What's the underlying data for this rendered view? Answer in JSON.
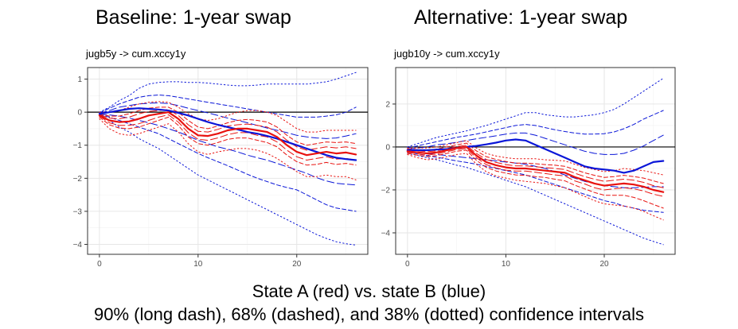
{
  "titles": {
    "left": "Baseline: 1-year swap",
    "right": "Alternative: 1-year swap"
  },
  "caption": {
    "line1": "State A (red) vs. state B (blue)",
    "line2": "90% (long dash), 68% (dashed), and 38% (dotted) confidence intervals"
  },
  "colors": {
    "state_a": "#e8120f",
    "state_b": "#0a16d8",
    "zero_line": "#000000",
    "grid": "#e6e6e6"
  },
  "chart_data": [
    {
      "type": "line",
      "title": "Baseline: 1-year swap",
      "subtitle": "jugb5y -> cum.xccy1y",
      "x": [
        0,
        1,
        2,
        3,
        4,
        5,
        6,
        7,
        8,
        9,
        10,
        11,
        12,
        13,
        14,
        15,
        16,
        17,
        18,
        19,
        20,
        21,
        22,
        23,
        24,
        25,
        26
      ],
      "xticks": [
        0,
        10,
        20
      ],
      "yticks": [
        1,
        0,
        -1,
        -2,
        -3,
        -4
      ],
      "xlim": [
        -1.2,
        27.2
      ],
      "ylim": [
        -4.3,
        1.35
      ],
      "grid": true,
      "series": [
        {
          "state": "B",
          "band": "estimate",
          "style": "solid",
          "values": [
            -0.05,
            0.0,
            0.05,
            0.1,
            0.12,
            0.1,
            0.08,
            0.05,
            -0.02,
            -0.1,
            -0.2,
            -0.3,
            -0.38,
            -0.45,
            -0.52,
            -0.6,
            -0.65,
            -0.72,
            -0.8,
            -0.9,
            -1.0,
            -1.1,
            -1.2,
            -1.3,
            -1.38,
            -1.42,
            -1.45
          ]
        },
        {
          "state": "B",
          "band": "38% upper",
          "style": "dotted",
          "values": [
            0.0,
            0.15,
            0.35,
            0.5,
            0.72,
            0.85,
            0.9,
            0.92,
            0.92,
            0.9,
            0.9,
            0.88,
            0.85,
            0.82,
            0.8,
            0.8,
            0.82,
            0.85,
            0.85,
            0.85,
            0.85,
            0.85,
            0.88,
            0.92,
            1.0,
            1.1,
            1.2
          ]
        },
        {
          "state": "B",
          "band": "38% lower",
          "style": "dotted",
          "values": [
            -0.1,
            -0.25,
            -0.45,
            -0.6,
            -0.8,
            -0.95,
            -1.1,
            -1.3,
            -1.5,
            -1.7,
            -1.9,
            -2.05,
            -2.2,
            -2.35,
            -2.5,
            -2.65,
            -2.8,
            -2.95,
            -3.1,
            -3.25,
            -3.4,
            -3.55,
            -3.7,
            -3.82,
            -3.92,
            -3.98,
            -4.02
          ]
        },
        {
          "state": "B",
          "band": "68% upper",
          "style": "dashed",
          "values": [
            -0.02,
            0.12,
            0.25,
            0.35,
            0.45,
            0.5,
            0.52,
            0.5,
            0.45,
            0.4,
            0.35,
            0.3,
            0.25,
            0.2,
            0.15,
            0.1,
            0.05,
            0.0,
            -0.05,
            -0.1,
            -0.15,
            -0.15,
            -0.15,
            -0.12,
            -0.08,
            0.0,
            0.15
          ]
        },
        {
          "state": "B",
          "band": "68% lower",
          "style": "dashed",
          "values": [
            -0.08,
            -0.15,
            -0.25,
            -0.35,
            -0.45,
            -0.55,
            -0.65,
            -0.8,
            -0.95,
            -1.1,
            -1.25,
            -1.38,
            -1.5,
            -1.62,
            -1.75,
            -1.88,
            -2.0,
            -2.1,
            -2.2,
            -2.28,
            -2.35,
            -2.5,
            -2.65,
            -2.8,
            -2.9,
            -2.95,
            -3.0
          ]
        },
        {
          "state": "B",
          "band": "90% upper",
          "style": "longdash",
          "values": [
            -0.03,
            0.05,
            0.15,
            0.2,
            0.25,
            0.27,
            0.28,
            0.26,
            0.2,
            0.12,
            0.05,
            -0.02,
            -0.1,
            -0.18,
            -0.25,
            -0.32,
            -0.4,
            -0.48,
            -0.55,
            -0.62,
            -0.7,
            -0.75,
            -0.78,
            -0.8,
            -0.78,
            -0.72,
            -0.65
          ]
        },
        {
          "state": "B",
          "band": "90% lower",
          "style": "longdash",
          "values": [
            -0.07,
            -0.08,
            -0.12,
            -0.18,
            -0.25,
            -0.32,
            -0.4,
            -0.5,
            -0.6,
            -0.72,
            -0.85,
            -0.95,
            -1.05,
            -1.12,
            -1.2,
            -1.3,
            -1.38,
            -1.45,
            -1.55,
            -1.65,
            -1.75,
            -1.85,
            -1.98,
            -2.08,
            -2.15,
            -2.18,
            -2.2
          ]
        },
        {
          "state": "A",
          "band": "estimate",
          "style": "solid",
          "values": [
            -0.1,
            -0.25,
            -0.3,
            -0.28,
            -0.2,
            -0.1,
            -0.05,
            0.0,
            -0.2,
            -0.5,
            -0.7,
            -0.72,
            -0.65,
            -0.55,
            -0.5,
            -0.5,
            -0.55,
            -0.6,
            -0.75,
            -1.0,
            -1.2,
            -1.3,
            -1.25,
            -1.2,
            -1.25,
            -1.22,
            -1.28
          ]
        },
        {
          "state": "A",
          "band": "38% upper",
          "style": "dotted",
          "values": [
            0.0,
            0.0,
            0.05,
            0.15,
            0.25,
            0.3,
            0.32,
            0.3,
            0.15,
            -0.05,
            -0.2,
            -0.25,
            -0.2,
            -0.1,
            0.0,
            0.05,
            0.05,
            0.0,
            -0.1,
            -0.3,
            -0.5,
            -0.6,
            -0.6,
            -0.55,
            -0.55,
            -0.55,
            -0.55
          ]
        },
        {
          "state": "A",
          "band": "38% lower",
          "style": "dotted",
          "values": [
            -0.2,
            -0.5,
            -0.65,
            -0.7,
            -0.65,
            -0.55,
            -0.45,
            -0.35,
            -0.6,
            -0.95,
            -1.2,
            -1.28,
            -1.2,
            -1.15,
            -1.1,
            -1.1,
            -1.15,
            -1.25,
            -1.4,
            -1.6,
            -1.8,
            -1.95,
            -1.95,
            -1.9,
            -1.95,
            -1.95,
            -2.05
          ]
        },
        {
          "state": "A",
          "band": "68% upper",
          "style": "dashed",
          "values": [
            -0.05,
            -0.12,
            -0.12,
            -0.05,
            0.05,
            0.12,
            0.15,
            0.15,
            0.0,
            -0.25,
            -0.45,
            -0.5,
            -0.42,
            -0.32,
            -0.25,
            -0.22,
            -0.25,
            -0.3,
            -0.45,
            -0.7,
            -0.9,
            -1.0,
            -0.95,
            -0.9,
            -0.92,
            -0.9,
            -0.95
          ]
        },
        {
          "state": "A",
          "band": "68% lower",
          "style": "dashed",
          "values": [
            -0.15,
            -0.38,
            -0.48,
            -0.5,
            -0.45,
            -0.35,
            -0.25,
            -0.15,
            -0.4,
            -0.75,
            -0.95,
            -1.0,
            -0.92,
            -0.82,
            -0.78,
            -0.78,
            -0.85,
            -0.92,
            -1.05,
            -1.3,
            -1.5,
            -1.6,
            -1.58,
            -1.52,
            -1.58,
            -1.55,
            -1.6
          ]
        },
        {
          "state": "A",
          "band": "90% upper",
          "style": "longdash",
          "values": [
            -0.08,
            -0.18,
            -0.2,
            -0.15,
            -0.05,
            0.02,
            0.05,
            0.08,
            -0.1,
            -0.38,
            -0.58,
            -0.6,
            -0.52,
            -0.42,
            -0.38,
            -0.36,
            -0.4,
            -0.45,
            -0.6,
            -0.85,
            -1.05,
            -1.15,
            -1.1,
            -1.05,
            -1.08,
            -1.05,
            -1.1
          ]
        },
        {
          "state": "A",
          "band": "90% lower",
          "style": "longdash",
          "values": [
            -0.12,
            -0.32,
            -0.4,
            -0.4,
            -0.35,
            -0.25,
            -0.15,
            -0.08,
            -0.3,
            -0.62,
            -0.82,
            -0.85,
            -0.78,
            -0.68,
            -0.62,
            -0.62,
            -0.7,
            -0.75,
            -0.9,
            -1.15,
            -1.35,
            -1.45,
            -1.4,
            -1.35,
            -1.42,
            -1.4,
            -1.45
          ]
        }
      ]
    },
    {
      "type": "line",
      "title": "Alternative: 1-year swap",
      "subtitle": "jugb10y -> cum.xccy1y",
      "x": [
        0,
        1,
        2,
        3,
        4,
        5,
        6,
        7,
        8,
        9,
        10,
        11,
        12,
        13,
        14,
        15,
        16,
        17,
        18,
        19,
        20,
        21,
        22,
        23,
        24,
        25,
        26
      ],
      "xticks": [
        0,
        10,
        20
      ],
      "yticks": [
        2,
        0,
        -2,
        -4
      ],
      "xlim": [
        -1.2,
        27.2
      ],
      "ylim": [
        -5.0,
        3.7
      ],
      "grid": true,
      "series": [
        {
          "state": "B",
          "band": "estimate",
          "style": "solid",
          "values": [
            -0.15,
            -0.15,
            -0.15,
            -0.12,
            -0.1,
            -0.05,
            0.0,
            0.05,
            0.12,
            0.2,
            0.3,
            0.35,
            0.3,
            0.1,
            -0.1,
            -0.3,
            -0.5,
            -0.7,
            -0.9,
            -1.0,
            -1.05,
            -1.1,
            -1.2,
            -1.1,
            -0.9,
            -0.7,
            -0.65
          ]
        },
        {
          "state": "B",
          "band": "38% upper",
          "style": "dotted",
          "values": [
            0.0,
            0.15,
            0.3,
            0.45,
            0.55,
            0.65,
            0.75,
            0.88,
            1.0,
            1.15,
            1.3,
            1.45,
            1.6,
            1.6,
            1.5,
            1.45,
            1.4,
            1.4,
            1.45,
            1.5,
            1.6,
            1.75,
            2.0,
            2.3,
            2.6,
            2.9,
            3.2
          ]
        },
        {
          "state": "B",
          "band": "38% lower",
          "style": "dotted",
          "values": [
            -0.3,
            -0.4,
            -0.5,
            -0.6,
            -0.72,
            -0.85,
            -0.95,
            -1.1,
            -1.25,
            -1.4,
            -1.55,
            -1.7,
            -1.85,
            -2.05,
            -2.25,
            -2.45,
            -2.65,
            -2.85,
            -3.05,
            -3.25,
            -3.45,
            -3.65,
            -3.85,
            -4.05,
            -4.25,
            -4.4,
            -4.55
          ]
        },
        {
          "state": "B",
          "band": "68% upper",
          "style": "dashed",
          "values": [
            -0.05,
            0.05,
            0.15,
            0.25,
            0.35,
            0.45,
            0.52,
            0.6,
            0.7,
            0.8,
            0.9,
            1.0,
            1.05,
            1.0,
            0.9,
            0.8,
            0.72,
            0.65,
            0.6,
            0.6,
            0.62,
            0.7,
            0.85,
            1.05,
            1.3,
            1.5,
            1.7
          ]
        },
        {
          "state": "B",
          "band": "68% lower",
          "style": "dashed",
          "values": [
            -0.25,
            -0.32,
            -0.4,
            -0.48,
            -0.56,
            -0.65,
            -0.72,
            -0.8,
            -0.9,
            -1.0,
            -1.1,
            -1.2,
            -1.3,
            -1.45,
            -1.6,
            -1.75,
            -1.9,
            -2.05,
            -2.2,
            -2.35,
            -2.5,
            -2.6,
            -2.75,
            -2.85,
            -2.95,
            -3.0,
            -3.05
          ]
        },
        {
          "state": "B",
          "band": "90% upper",
          "style": "longdash",
          "values": [
            -0.1,
            -0.05,
            0.0,
            0.1,
            0.15,
            0.22,
            0.3,
            0.38,
            0.45,
            0.52,
            0.6,
            0.65,
            0.65,
            0.55,
            0.4,
            0.25,
            0.1,
            -0.05,
            -0.2,
            -0.3,
            -0.35,
            -0.35,
            -0.3,
            -0.15,
            0.05,
            0.3,
            0.55
          ]
        },
        {
          "state": "B",
          "band": "90% lower",
          "style": "longdash",
          "values": [
            -0.2,
            -0.25,
            -0.3,
            -0.35,
            -0.4,
            -0.45,
            -0.5,
            -0.55,
            -0.6,
            -0.65,
            -0.7,
            -0.75,
            -0.8,
            -0.9,
            -1.0,
            -1.15,
            -1.3,
            -1.45,
            -1.6,
            -1.7,
            -1.8,
            -1.85,
            -1.9,
            -1.9,
            -1.88,
            -1.85,
            -1.85
          ]
        },
        {
          "state": "A",
          "band": "estimate",
          "style": "solid",
          "values": [
            -0.2,
            -0.25,
            -0.3,
            -0.25,
            -0.15,
            -0.05,
            0.0,
            -0.4,
            -0.7,
            -0.85,
            -0.95,
            -1.0,
            -1.0,
            -1.05,
            -1.1,
            -1.15,
            -1.2,
            -1.4,
            -1.55,
            -1.7,
            -1.8,
            -1.75,
            -1.7,
            -1.75,
            -1.85,
            -2.0,
            -2.1
          ]
        },
        {
          "state": "A",
          "band": "38% upper",
          "style": "dotted",
          "values": [
            -0.05,
            -0.05,
            -0.05,
            0.0,
            0.1,
            0.2,
            0.3,
            -0.05,
            -0.3,
            -0.42,
            -0.5,
            -0.55,
            -0.55,
            -0.55,
            -0.6,
            -0.62,
            -0.65,
            -0.8,
            -0.95,
            -1.05,
            -1.15,
            -1.1,
            -1.0,
            -1.05,
            -1.1,
            -1.2,
            -1.3
          ]
        },
        {
          "state": "A",
          "band": "38% lower",
          "style": "dotted",
          "values": [
            -0.35,
            -0.5,
            -0.6,
            -0.55,
            -0.45,
            -0.35,
            -0.3,
            -0.8,
            -1.15,
            -1.35,
            -1.45,
            -1.55,
            -1.6,
            -1.65,
            -1.7,
            -1.8,
            -1.9,
            -2.1,
            -2.3,
            -2.5,
            -2.65,
            -2.7,
            -2.75,
            -2.85,
            -3.0,
            -3.2,
            -3.4
          ]
        },
        {
          "state": "A",
          "band": "68% upper",
          "style": "dashed",
          "values": [
            -0.1,
            -0.12,
            -0.15,
            -0.1,
            0.0,
            0.1,
            0.18,
            -0.18,
            -0.45,
            -0.58,
            -0.68,
            -0.75,
            -0.75,
            -0.78,
            -0.82,
            -0.85,
            -0.9,
            -1.05,
            -1.2,
            -1.32,
            -1.42,
            -1.38,
            -1.32,
            -1.38,
            -1.45,
            -1.58,
            -1.7
          ]
        },
        {
          "state": "A",
          "band": "68% lower",
          "style": "dashed",
          "values": [
            -0.3,
            -0.38,
            -0.45,
            -0.4,
            -0.3,
            -0.2,
            -0.15,
            -0.62,
            -0.95,
            -1.12,
            -1.22,
            -1.3,
            -1.32,
            -1.38,
            -1.42,
            -1.5,
            -1.58,
            -1.78,
            -1.95,
            -2.12,
            -2.25,
            -2.25,
            -2.25,
            -2.35,
            -2.5,
            -2.68,
            -2.85
          ]
        },
        {
          "state": "A",
          "band": "90% upper",
          "style": "longdash",
          "values": [
            -0.15,
            -0.18,
            -0.22,
            -0.18,
            -0.08,
            0.02,
            0.08,
            -0.3,
            -0.58,
            -0.72,
            -0.82,
            -0.88,
            -0.88,
            -0.92,
            -0.96,
            -1.0,
            -1.05,
            -1.22,
            -1.38,
            -1.5,
            -1.6,
            -1.55,
            -1.5,
            -1.55,
            -1.65,
            -1.8,
            -1.9
          ]
        },
        {
          "state": "A",
          "band": "90% lower",
          "style": "longdash",
          "values": [
            -0.25,
            -0.32,
            -0.38,
            -0.32,
            -0.22,
            -0.12,
            -0.08,
            -0.5,
            -0.82,
            -0.98,
            -1.08,
            -1.12,
            -1.12,
            -1.18,
            -1.24,
            -1.3,
            -1.35,
            -1.58,
            -1.72,
            -1.9,
            -2.0,
            -1.95,
            -1.9,
            -1.95,
            -2.05,
            -2.2,
            -2.3
          ]
        }
      ]
    }
  ]
}
